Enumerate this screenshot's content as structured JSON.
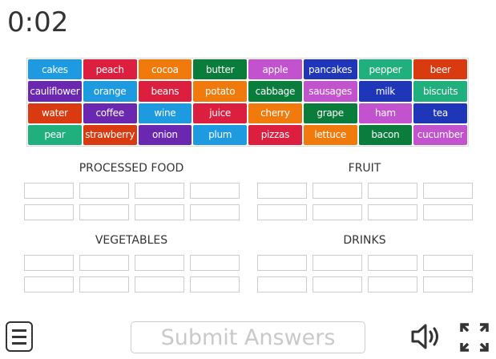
{
  "timer": "0:02",
  "colors": {
    "blue": "#1e9be0",
    "red": "#dd1f3f",
    "orange": "#f07b0c",
    "green": "#0a7d3c",
    "purple": "#6a27b0",
    "orangered": "#d93a0f",
    "teal": "#1fb07d",
    "magenta": "#c352cf",
    "navy": "#1f36b8"
  },
  "words": [
    {
      "label": "cakes",
      "color": "blue"
    },
    {
      "label": "peach",
      "color": "red"
    },
    {
      "label": "cocoa",
      "color": "orange"
    },
    {
      "label": "butter",
      "color": "green"
    },
    {
      "label": "apple",
      "color": "magenta"
    },
    {
      "label": "pancakes",
      "color": "navy"
    },
    {
      "label": "pepper",
      "color": "teal"
    },
    {
      "label": "beer",
      "color": "orangered"
    },
    {
      "label": "cauliflower",
      "color": "purple"
    },
    {
      "label": "orange",
      "color": "blue"
    },
    {
      "label": "beans",
      "color": "red"
    },
    {
      "label": "potato",
      "color": "orange"
    },
    {
      "label": "cabbage",
      "color": "green"
    },
    {
      "label": "sausages",
      "color": "magenta"
    },
    {
      "label": "milk",
      "color": "navy"
    },
    {
      "label": "biscuits",
      "color": "teal"
    },
    {
      "label": "water",
      "color": "orangered"
    },
    {
      "label": "coffee",
      "color": "purple"
    },
    {
      "label": "wine",
      "color": "blue"
    },
    {
      "label": "juice",
      "color": "red"
    },
    {
      "label": "cherry",
      "color": "orange"
    },
    {
      "label": "grape",
      "color": "green"
    },
    {
      "label": "ham",
      "color": "magenta"
    },
    {
      "label": "tea",
      "color": "navy"
    },
    {
      "label": "pear",
      "color": "teal"
    },
    {
      "label": "strawberry",
      "color": "orangered"
    },
    {
      "label": "onion",
      "color": "purple"
    },
    {
      "label": "plum",
      "color": "blue"
    },
    {
      "label": "pizzas",
      "color": "red"
    },
    {
      "label": "lettuce",
      "color": "orange"
    },
    {
      "label": "bacon",
      "color": "green"
    },
    {
      "label": "cucumber",
      "color": "magenta"
    }
  ],
  "categories": [
    {
      "title": "PROCESSED FOOD",
      "slots": 8
    },
    {
      "title": "FRUIT",
      "slots": 8
    },
    {
      "title": "VEGETABLES",
      "slots": 8
    },
    {
      "title": "DRINKS",
      "slots": 8
    }
  ],
  "footer": {
    "submit_label": "Submit Answers",
    "menu_icon": "menu-icon",
    "sound_icon": "speaker-icon",
    "fullscreen_icon": "fullscreen-icon"
  }
}
